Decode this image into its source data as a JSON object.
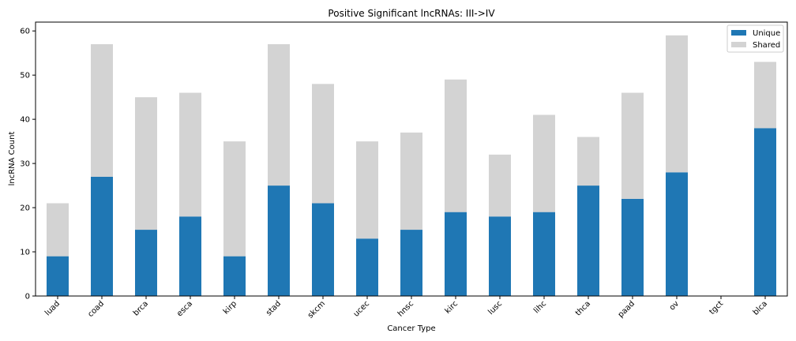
{
  "chart_data": {
    "type": "bar",
    "stacked": true,
    "title": "Positive Significant lncRNAs: III->IV",
    "xlabel": "Cancer Type",
    "ylabel": "lncRNA Count",
    "categories": [
      "luad",
      "coad",
      "brca",
      "esca",
      "kirp",
      "stad",
      "skcm",
      "ucec",
      "hnsc",
      "kirc",
      "lusc",
      "lihc",
      "thca",
      "paad",
      "ov",
      "tgct",
      "blca"
    ],
    "series": [
      {
        "name": "Unique",
        "color": "#1f77b4",
        "values": [
          9,
          27,
          15,
          18,
          9,
          25,
          21,
          13,
          15,
          19,
          18,
          19,
          25,
          22,
          28,
          0,
          38
        ]
      },
      {
        "name": "Shared",
        "color": "#d3d3d3",
        "values": [
          12,
          30,
          30,
          28,
          26,
          32,
          27,
          22,
          22,
          30,
          14,
          22,
          11,
          24,
          31,
          0,
          15
        ]
      }
    ],
    "ylim": [
      0,
      62
    ],
    "yticks": [
      0,
      10,
      20,
      30,
      40,
      50,
      60
    ],
    "grid": false,
    "legend_position": "top-right"
  }
}
